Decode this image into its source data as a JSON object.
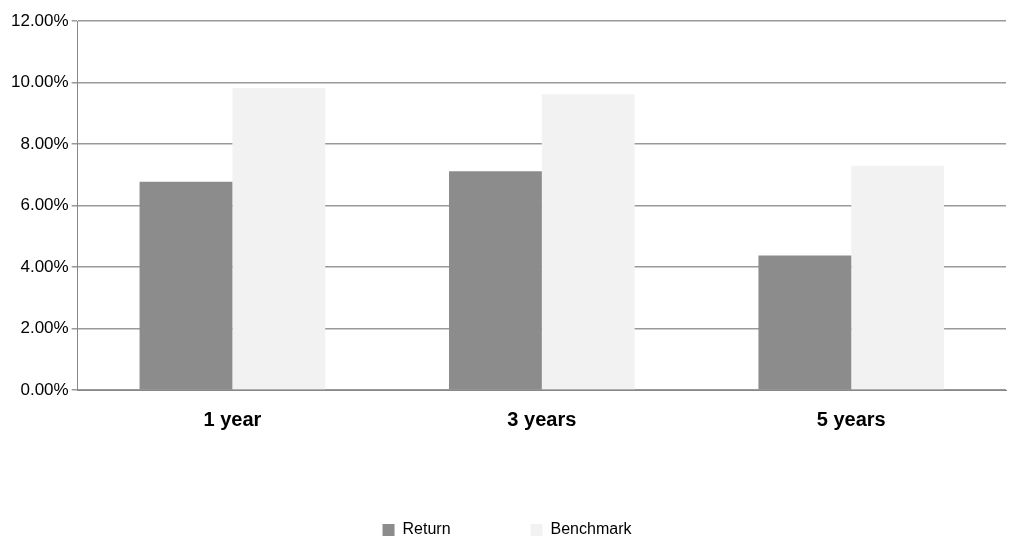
{
  "chart_data": {
    "type": "bar",
    "categories": [
      "1 year",
      "3 years",
      "5 years"
    ],
    "series": [
      {
        "name": "Return",
        "color": "#8c8c8c",
        "values": [
          6.78,
          7.12,
          4.38
        ]
      },
      {
        "name": "Benchmark",
        "color": "#f2f2f2",
        "values": [
          9.83,
          9.62,
          7.3
        ]
      }
    ],
    "ylim": [
      0,
      12
    ],
    "yticks": [
      {
        "value": 0,
        "label": "0.00%"
      },
      {
        "value": 2,
        "label": "2.00%"
      },
      {
        "value": 4,
        "label": "4.00%"
      },
      {
        "value": 6,
        "label": "6.00%"
      },
      {
        "value": 8,
        "label": "8.00%"
      },
      {
        "value": 10,
        "label": "10.00%"
      },
      {
        "value": 12,
        "label": "12.00%"
      }
    ],
    "grid": "y",
    "legend": "bottom"
  }
}
